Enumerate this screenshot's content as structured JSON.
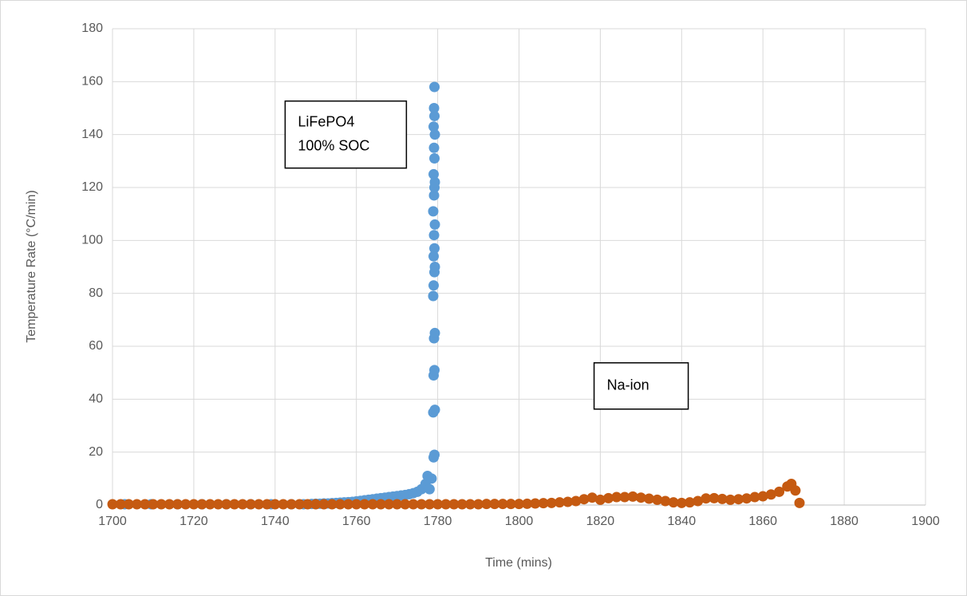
{
  "chart_data": {
    "type": "scatter",
    "xlabel": "Time (mins)",
    "ylabel": "Temperature Rate (°C/min)",
    "xlim": [
      1700,
      1900
    ],
    "xticks": [
      1700,
      1720,
      1740,
      1760,
      1780,
      1800,
      1820,
      1840,
      1860,
      1880,
      1900
    ],
    "ylim": [
      0,
      180
    ],
    "yticks": [
      0,
      20,
      40,
      60,
      80,
      100,
      120,
      140,
      160,
      180
    ],
    "grid": true,
    "annotations": [
      {
        "lines": [
          "LiFePO4",
          "100% SOC"
        ],
        "x": 1746,
        "y": 140
      },
      {
        "lines": [
          "Na-ion"
        ],
        "x": 1822,
        "y": 45
      }
    ],
    "series": [
      {
        "name": "LiFePO4",
        "color": "#5b9bd5",
        "x": [
          1703,
          1709.5,
          1716,
          1722,
          1728,
          1734,
          1739,
          1744,
          1747,
          1749,
          1750,
          1751,
          1752,
          1753,
          1754,
          1755,
          1756,
          1757,
          1758,
          1759,
          1760,
          1761,
          1762,
          1763,
          1764,
          1765,
          1766,
          1767,
          1768,
          1769,
          1770,
          1771,
          1772,
          1773,
          1774,
          1775,
          1776,
          1777,
          1777.5,
          1778,
          1778.5,
          1779,
          1779.2,
          1778.9,
          1779.3,
          1779,
          1779.2,
          1779.1,
          1779.3,
          1778.9,
          1779,
          1779.2,
          1779.3,
          1779,
          1779.2,
          1779.1,
          1779.3,
          1778.9,
          1779.1,
          1779.2,
          1779.3,
          1779,
          1779.2,
          1779.1,
          1779.3,
          1779,
          1779.2,
          1779.1,
          1779.2
        ],
        "y": [
          0.3,
          0.3,
          0.3,
          0.3,
          0.3,
          0.3,
          0.3,
          0.3,
          0.3,
          0.4,
          0.5,
          0.5,
          0.6,
          0.6,
          0.7,
          0.8,
          0.9,
          1.0,
          1.1,
          1.2,
          1.4,
          1.6,
          1.8,
          2.0,
          2.2,
          2.4,
          2.6,
          2.8,
          3.0,
          3.2,
          3.4,
          3.6,
          3.8,
          4.1,
          4.5,
          5.0,
          6,
          8,
          11,
          6,
          10,
          18,
          19,
          35,
          36,
          49,
          51,
          63,
          65,
          79,
          83,
          88,
          90,
          94,
          97,
          102,
          106,
          111,
          117,
          120,
          122,
          125,
          131,
          135,
          140,
          143,
          147,
          150,
          158
        ]
      },
      {
        "name": "Na-ion",
        "color": "#c55a11",
        "x": [
          1700,
          1702,
          1704,
          1706,
          1708,
          1710,
          1712,
          1714,
          1716,
          1718,
          1720,
          1722,
          1724,
          1726,
          1728,
          1730,
          1732,
          1734,
          1736,
          1738,
          1740,
          1742,
          1744,
          1746,
          1748,
          1750,
          1752,
          1754,
          1756,
          1758,
          1760,
          1762,
          1764,
          1766,
          1768,
          1770,
          1772,
          1774,
          1776,
          1778,
          1780,
          1782,
          1784,
          1786,
          1788,
          1790,
          1792,
          1794,
          1796,
          1798,
          1800,
          1802,
          1804,
          1806,
          1808,
          1810,
          1812,
          1814,
          1816,
          1818,
          1820,
          1822,
          1824,
          1826,
          1828,
          1830,
          1832,
          1834,
          1836,
          1838,
          1840,
          1842,
          1844,
          1846,
          1848,
          1850,
          1852,
          1854,
          1856,
          1858,
          1860,
          1862,
          1864,
          1866,
          1867,
          1868,
          1869
        ],
        "y": [
          0.3,
          0.3,
          0.3,
          0.3,
          0.3,
          0.3,
          0.3,
          0.3,
          0.3,
          0.3,
          0.3,
          0.3,
          0.3,
          0.3,
          0.3,
          0.3,
          0.3,
          0.3,
          0.3,
          0.3,
          0.3,
          0.3,
          0.3,
          0.3,
          0.3,
          0.3,
          0.3,
          0.3,
          0.3,
          0.3,
          0.3,
          0.3,
          0.3,
          0.3,
          0.3,
          0.3,
          0.3,
          0.3,
          0.3,
          0.3,
          0.3,
          0.3,
          0.3,
          0.3,
          0.3,
          0.3,
          0.4,
          0.4,
          0.4,
          0.4,
          0.4,
          0.5,
          0.6,
          0.7,
          0.8,
          1.0,
          1.2,
          1.5,
          2.2,
          2.8,
          2.0,
          2.6,
          3.0,
          3.0,
          3.2,
          2.8,
          2.4,
          2.0,
          1.5,
          1.0,
          0.8,
          1.0,
          1.5,
          2.5,
          2.6,
          2.3,
          2.0,
          2.2,
          2.5,
          3.0,
          3.3,
          4.0,
          5.0,
          7.0,
          8.0,
          5.5,
          0.8
        ]
      }
    ]
  }
}
